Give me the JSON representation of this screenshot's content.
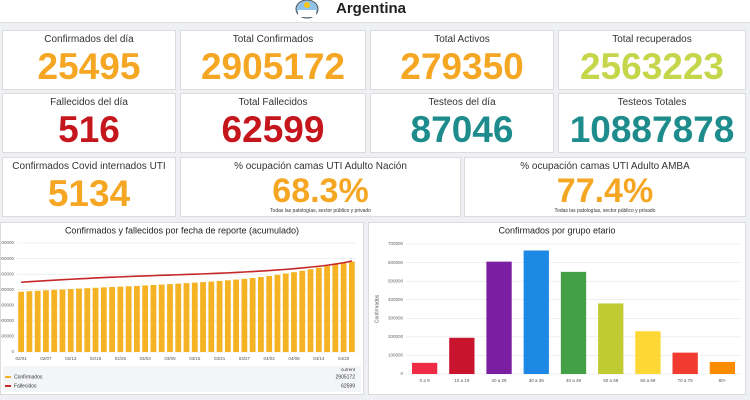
{
  "header": {
    "title": "Argentina"
  },
  "cards": [
    {
      "label": "Confirmados del día",
      "value": 25495,
      "color": "#f5a623"
    },
    {
      "label": "Total Confirmados",
      "value": 2905172,
      "color": "#f5a623"
    },
    {
      "label": "Total Activos",
      "value": 279350,
      "color": "#f5a623"
    },
    {
      "label": "Total recuperados",
      "value": 2563223,
      "color": "#c5d64a"
    },
    {
      "label": "Fallecidos del día",
      "value": 516,
      "color": "#c4161c"
    },
    {
      "label": "Total Fallecidos",
      "value": 62599,
      "color": "#c4161c"
    },
    {
      "label": "Testeos del día",
      "value": 87046,
      "color": "#1e8c8c"
    },
    {
      "label": "Testeos Totales",
      "value": 10887878,
      "color": "#1e8c8c"
    },
    {
      "label": "Confirmados Covid internados UTI",
      "value": 5134,
      "color": "#f5a623"
    },
    {
      "label": "% ocupación camas UTI Adulto Nación",
      "value": "68.3%",
      "note": "Todas las patologías, sector público y privado",
      "color": "#f5a623"
    },
    {
      "label": "% ocupación camas UTI Adulto AMBA",
      "value": "77.4%",
      "note": "Todas las patologías, sector público y privado",
      "color": "#f5a623"
    }
  ],
  "chart_data": [
    {
      "type": "bar",
      "title": "Confirmados y fallecidos por fecha de reporte (acumulado)",
      "categories": [
        "02/01",
        null,
        null,
        "02/07",
        null,
        null,
        "02/13",
        null,
        null,
        "02/19",
        null,
        null,
        "02/25",
        null,
        null,
        "03/03",
        null,
        null,
        "03/09",
        null,
        null,
        "03/15",
        null,
        null,
        "03/21",
        null,
        null,
        "03/27",
        null,
        null,
        "04/02",
        null,
        null,
        "04/08",
        null,
        null,
        "04/14",
        null,
        null,
        "04/20",
        null
      ],
      "series": [
        {
          "name": "Confirmados",
          "type": "bar",
          "color": "#f5b223",
          "values": [
            1935000,
            1951000,
            1966000,
            1981000,
            1995000,
            2009000,
            2023000,
            2036000,
            2049000,
            2062000,
            2075000,
            2087000,
            2099000,
            2110000,
            2121000,
            2136000,
            2151000,
            2165000,
            2180000,
            2195000,
            2211000,
            2228000,
            2245000,
            2262000,
            2281000,
            2302000,
            2325000,
            2350000,
            2377000,
            2407000,
            2441000,
            2477000,
            2518000,
            2562000,
            2609000,
            2658000,
            2709000,
            2761000,
            2813000,
            2860000,
            2905172
          ]
        },
        {
          "name": "Fallecidos",
          "type": "line",
          "axis": "y2",
          "color": "#c62828",
          "values": [
            48000,
            48350,
            48700,
            49050,
            49400,
            49750,
            50050,
            50350,
            50650,
            50950,
            51200,
            51450,
            51700,
            51950,
            52150,
            52350,
            52550,
            52750,
            52950,
            53150,
            53350,
            53550,
            53750,
            53950,
            54200,
            54450,
            54750,
            55050,
            55350,
            55700,
            56050,
            56450,
            56850,
            57350,
            57850,
            58400,
            59000,
            59700,
            60500,
            61400,
            62599
          ]
        }
      ],
      "legend_header": "current",
      "ylim": [
        0,
        3500000
      ],
      "yticks": [
        0,
        500000,
        1000000,
        1500000,
        2000000,
        2500000,
        3000000,
        3500000
      ],
      "y2lim": [
        0,
        75000
      ],
      "grid": true
    },
    {
      "type": "bar",
      "title": "Confirmados por grupo etario",
      "ylabel": "Confirmados",
      "categories": [
        "0 a 9",
        "10 a 19",
        "20 a 29",
        "30 a 39",
        "40 a 49",
        "50 a 59",
        "60 a 69",
        "70 a 79",
        "80+"
      ],
      "values": [
        60000,
        195000,
        605000,
        665000,
        550000,
        380000,
        230000,
        115000,
        65000
      ],
      "colors": [
        "#ef2b45",
        "#c8152d",
        "#7b1fa2",
        "#1e88e5",
        "#43a047",
        "#c0ca33",
        "#fdd835",
        "#f23b30",
        "#fb8c00"
      ],
      "ylim": [
        0,
        700000
      ],
      "yticks": [
        0,
        100000,
        200000,
        300000,
        400000,
        500000,
        600000,
        700000
      ],
      "grid": true
    }
  ]
}
